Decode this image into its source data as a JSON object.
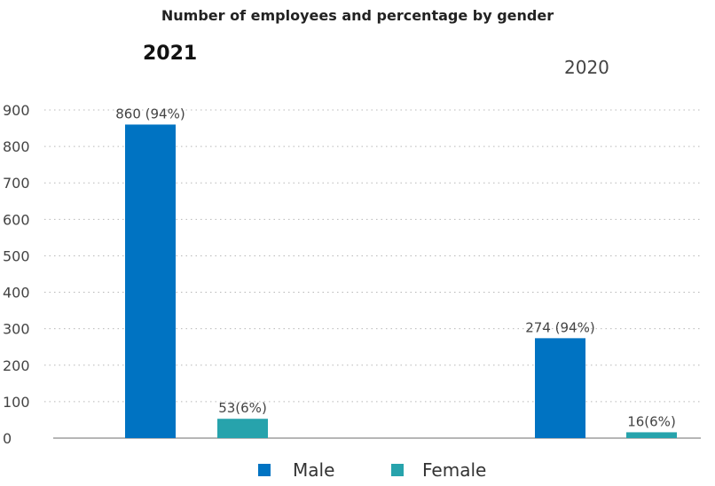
{
  "chart_data": {
    "type": "bar",
    "title": "Number of employees and percentage by gender",
    "categories": [
      "2021",
      "2020"
    ],
    "category_label_styles": {
      "2021": "bold",
      "2020": "regular"
    },
    "series": [
      {
        "name": "Male",
        "color": "#0073c2",
        "values": [
          860,
          274
        ],
        "labels": [
          "860 (94%)",
          "274 (94%)"
        ]
      },
      {
        "name": "Female",
        "color": "#27a3ac",
        "values": [
          53,
          16
        ],
        "labels": [
          "53(6%)",
          "16(6%)"
        ]
      }
    ],
    "yticks": [
      "0",
      "100",
      "200",
      "300",
      "400",
      "500",
      "600",
      "700",
      "800",
      "900"
    ],
    "ylim": [
      0,
      900
    ],
    "grid": true,
    "legend_position": "bottom"
  }
}
